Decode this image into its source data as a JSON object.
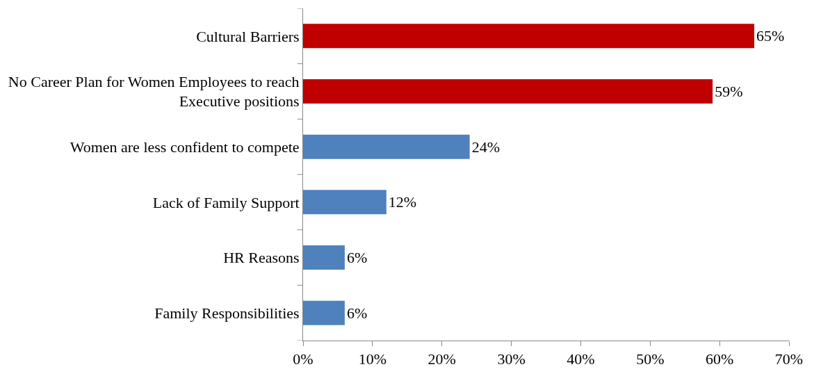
{
  "chart_data": {
    "type": "bar",
    "orientation": "horizontal",
    "categories": [
      "Cultural Barriers",
      "No Career Plan for Women Employees to reach Executive positions",
      "Women are less confident to compete",
      "Lack of Family Support",
      "HR Reasons",
      "Family Responsibilities"
    ],
    "values": [
      65,
      59,
      24,
      12,
      6,
      6
    ],
    "colors": [
      "#c00000",
      "#c00000",
      "#4f81bd",
      "#4f81bd",
      "#4f81bd",
      "#4f81bd"
    ],
    "value_labels": [
      "65%",
      "59%",
      "24%",
      "12%",
      "6%",
      "6%"
    ],
    "xlim": [
      0,
      70
    ],
    "xticks": [
      {
        "value": 0,
        "label": "0%"
      },
      {
        "value": 10,
        "label": "10%"
      },
      {
        "value": 20,
        "label": "20%"
      },
      {
        "value": 30,
        "label": "30%"
      },
      {
        "value": 40,
        "label": "40%"
      },
      {
        "value": 50,
        "label": "50%"
      },
      {
        "value": 60,
        "label": "60%"
      },
      {
        "value": 70,
        "label": "70%"
      }
    ],
    "legend": false
  }
}
